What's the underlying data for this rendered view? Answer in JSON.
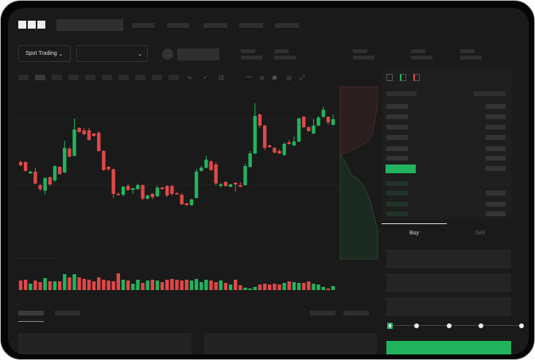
{
  "brand": {
    "logo": "OKX"
  },
  "header": {
    "mode_selector": "Spot Trading",
    "mode_chevron": "⌄",
    "pair_chevron": "⌄"
  },
  "trade_panel": {
    "tabs": [
      "Buy",
      "Sell"
    ],
    "active_tab": "Buy",
    "slider_value_percent": 0,
    "slider_stops": [
      0,
      25,
      50,
      75,
      100
    ]
  },
  "colors": {
    "up": "#22b35e",
    "down": "#e04848",
    "background": "#1a1a1a"
  },
  "toolbar_icons": [
    "indicator-icon",
    "candle-type-icon",
    "pencil-line-icon",
    "ruler-icon",
    "camera-icon",
    "settings-icon",
    "fullscreen-icon"
  ],
  "orderbook_icons": [
    "orderbook-both-icon",
    "orderbook-bids-icon",
    "orderbook-asks-icon"
  ],
  "chart_data": {
    "type": "candlestick",
    "candles": [
      [
        97,
        93,
        99,
        92
      ],
      [
        97,
        86,
        98,
        85
      ],
      [
        83,
        85,
        86,
        82
      ],
      [
        85,
        70,
        90,
        69
      ],
      [
        68,
        63,
        70,
        61
      ],
      [
        61,
        77,
        78,
        56
      ],
      [
        78,
        69,
        79,
        67
      ],
      [
        74,
        92,
        93,
        72
      ],
      [
        91,
        82,
        92,
        81
      ],
      [
        84,
        115,
        124,
        83
      ],
      [
        114,
        104,
        116,
        103
      ],
      [
        105,
        138,
        152,
        104
      ],
      [
        140,
        135,
        141,
        134
      ],
      [
        137,
        132,
        140,
        131
      ],
      [
        137,
        125,
        140,
        124
      ],
      [
        133,
        130,
        134,
        129
      ],
      [
        134,
        111,
        136,
        110
      ],
      [
        111,
        87,
        112,
        86
      ],
      [
        91,
        88,
        92,
        86
      ],
      [
        88,
        57,
        89,
        52
      ],
      [
        57,
        56,
        59,
        55
      ],
      [
        56,
        66,
        67,
        54
      ],
      [
        67,
        62,
        70,
        61
      ],
      [
        62,
        64,
        65,
        57
      ],
      [
        63,
        68,
        70,
        62
      ],
      [
        68,
        51,
        69,
        49
      ],
      [
        51,
        55,
        56,
        50
      ],
      [
        57,
        53,
        58,
        50
      ],
      [
        54,
        65,
        67,
        53
      ],
      [
        65,
        63,
        66,
        62
      ],
      [
        67,
        55,
        68,
        53
      ],
      [
        67,
        57,
        68,
        55
      ],
      [
        58,
        57,
        59,
        56
      ],
      [
        56,
        44,
        58,
        43
      ],
      [
        45,
        43,
        46,
        42
      ],
      [
        43,
        50,
        51,
        42
      ],
      [
        52,
        85,
        88,
        51
      ],
      [
        86,
        90,
        92,
        85
      ],
      [
        90,
        100,
        105,
        89
      ],
      [
        98,
        87,
        99,
        86
      ],
      [
        94,
        70,
        97,
        68
      ],
      [
        67,
        69,
        71,
        65
      ],
      [
        72,
        67,
        73,
        66
      ],
      [
        66,
        69,
        70,
        65
      ],
      [
        71,
        69,
        72,
        60
      ],
      [
        68,
        66,
        72,
        65
      ],
      [
        68,
        92,
        95,
        67
      ],
      [
        91,
        108,
        111,
        90
      ],
      [
        108,
        155,
        171,
        107
      ],
      [
        157,
        143,
        158,
        140
      ],
      [
        143,
        115,
        144,
        112
      ],
      [
        118,
        116,
        119,
        115
      ],
      [
        115,
        109,
        116,
        108
      ],
      [
        111,
        108,
        113,
        107
      ],
      [
        106,
        120,
        122,
        105
      ],
      [
        122,
        120,
        125,
        119
      ],
      [
        118,
        123,
        129,
        117
      ],
      [
        123,
        152,
        153,
        122
      ],
      [
        154,
        141,
        155,
        140
      ],
      [
        141,
        136,
        142,
        135
      ],
      [
        133,
        143,
        151,
        132
      ],
      [
        143,
        153,
        155,
        142
      ],
      [
        154,
        163,
        167,
        153
      ],
      [
        154,
        147,
        155,
        144
      ],
      [
        144,
        151,
        157,
        143
      ]
    ],
    "volumes": [
      12,
      13,
      8,
      12,
      10,
      15,
      11,
      11,
      11,
      20,
      16,
      20,
      16,
      14,
      13,
      11,
      16,
      13,
      12,
      11,
      21,
      13,
      12,
      8,
      13,
      9,
      12,
      13,
      12,
      10,
      13,
      14,
      13,
      12,
      13,
      12,
      14,
      10,
      13,
      12,
      10,
      12,
      9,
      7,
      13,
      6,
      3,
      2,
      4,
      7,
      8,
      7,
      8,
      7,
      9,
      11,
      10,
      9,
      9,
      11,
      8,
      7,
      4,
      2,
      5
    ]
  }
}
